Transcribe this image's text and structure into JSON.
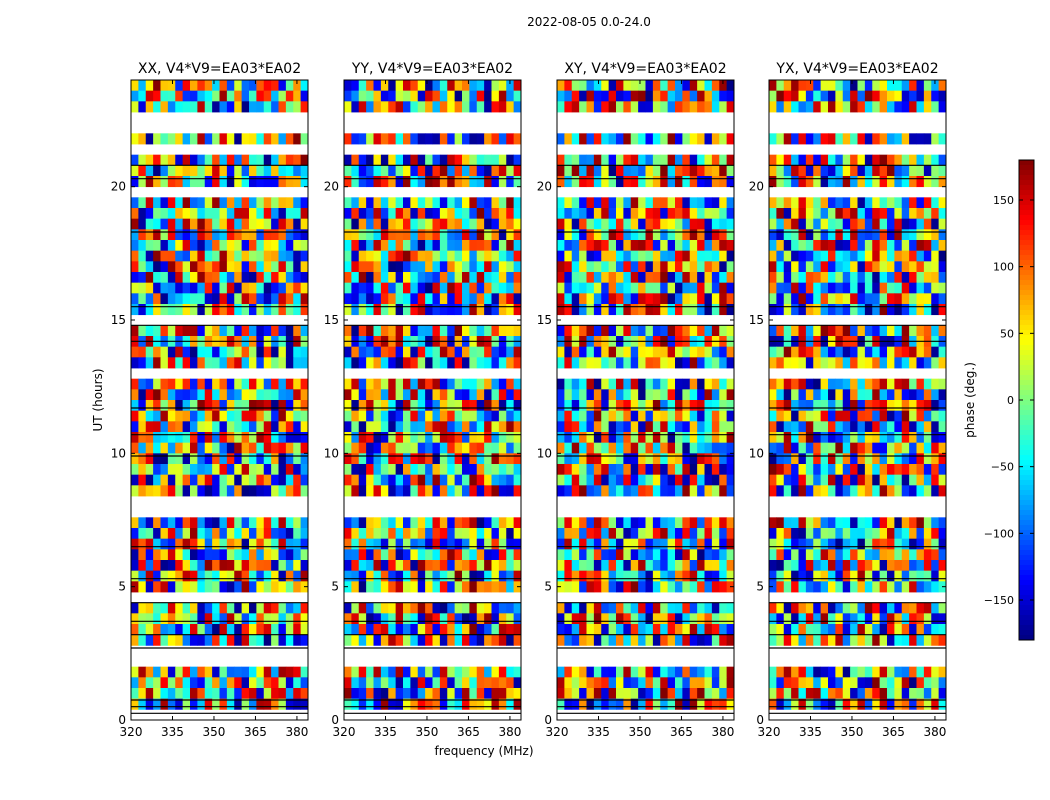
{
  "figure": {
    "suptitle": "2022-08-05 0.0-24.0",
    "xlabel": "frequency (MHz)",
    "ylabel": "UT (hours)",
    "colorbar_label": "phase (deg.)",
    "colorbar_ticks": [
      "150",
      "100",
      "50",
      "0",
      "−50",
      "−100",
      "−150"
    ],
    "colormap": "jet"
  },
  "chart_data": [
    {
      "type": "heatmap",
      "title": "XX, V4*V9=EA03*EA02",
      "x_ticks": [
        "320",
        "335",
        "350",
        "365",
        "380"
      ],
      "y_ticks": [
        "0",
        "5",
        "10",
        "15",
        "20"
      ],
      "xlim": [
        320,
        384
      ],
      "ylim": [
        0,
        24
      ],
      "value_range": [
        -180,
        180
      ],
      "value_label": "phase (deg.)"
    },
    {
      "type": "heatmap",
      "title": "YY, V4*V9=EA03*EA02",
      "x_ticks": [
        "320",
        "335",
        "350",
        "365",
        "380"
      ],
      "y_ticks": [
        "0",
        "5",
        "10",
        "15",
        "20"
      ],
      "xlim": [
        320,
        384
      ],
      "ylim": [
        0,
        24
      ],
      "value_range": [
        -180,
        180
      ],
      "value_label": "phase (deg.)"
    },
    {
      "type": "heatmap",
      "title": "XY, V4*V9=EA03*EA02",
      "x_ticks": [
        "320",
        "335",
        "350",
        "365",
        "380"
      ],
      "y_ticks": [
        "0",
        "5",
        "10",
        "15",
        "20"
      ],
      "xlim": [
        320,
        384
      ],
      "ylim": [
        0,
        24
      ],
      "value_range": [
        -180,
        180
      ],
      "value_label": "phase (deg.)"
    },
    {
      "type": "heatmap",
      "title": "YX, V4*V9=EA03*EA02",
      "x_ticks": [
        "320",
        "335",
        "350",
        "365",
        "380"
      ],
      "y_ticks": [
        "0",
        "5",
        "10",
        "15",
        "20"
      ],
      "xlim": [
        320,
        384
      ],
      "ylim": [
        0,
        24
      ],
      "value_range": [
        -180,
        180
      ],
      "value_label": "phase (deg.)"
    }
  ]
}
